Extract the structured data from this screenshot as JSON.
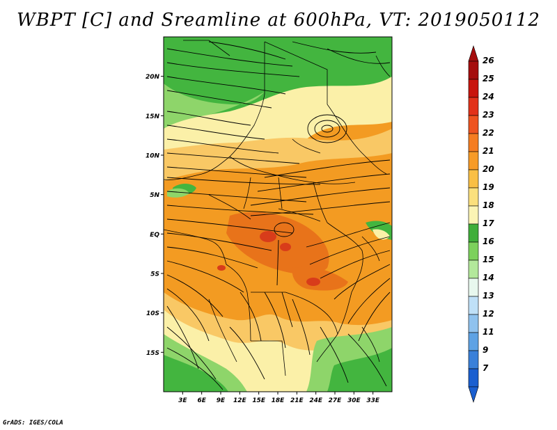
{
  "title": "WBPT [C] and Sreamline at 600hPa, VT: 2019050112",
  "credit": "GrADS: IGES/COLA",
  "map": {
    "lat_axis": {
      "range": [
        -20,
        25
      ],
      "labels": [
        "20N",
        "15N",
        "10N",
        "5N",
        "EQ",
        "5S",
        "10S",
        "15S"
      ],
      "values": [
        20,
        15,
        10,
        5,
        0,
        -5,
        -10,
        -15
      ]
    },
    "lon_axis": {
      "range": [
        0,
        36
      ],
      "labels": [
        "3E",
        "6E",
        "9E",
        "12E",
        "15E",
        "18E",
        "21E",
        "24E",
        "27E",
        "30E",
        "33E"
      ],
      "values": [
        3,
        6,
        9,
        12,
        15,
        18,
        21,
        24,
        27,
        30,
        33
      ]
    },
    "colors": {
      "green": "#43b53f",
      "light_green": "#8ed56a",
      "pale": "#fbf0a8",
      "light_orange": "#f9c865",
      "orange": "#f39b22",
      "dark_orange": "#e8731a",
      "red": "#d83c1a"
    }
  },
  "colorbar": {
    "labels": [
      "26",
      "25",
      "24",
      "23",
      "22",
      "21",
      "20",
      "19",
      "18",
      "17",
      "16",
      "15",
      "14",
      "13",
      "12",
      "11",
      "9",
      "7"
    ],
    "colors": [
      "#a50d0d",
      "#c8150d",
      "#e2321a",
      "#ee5420",
      "#f57d21",
      "#f79b27",
      "#f9bf45",
      "#fbe07d",
      "#fbf4b4",
      "#3fae3a",
      "#7cd15c",
      "#b3e89b",
      "#e8f8ee",
      "#bfe0f7",
      "#8fc2ee",
      "#5ea2e4",
      "#3a80d9",
      "#1a5fd0"
    ],
    "top_arrow_color": "#a50d0d",
    "bottom_arrow_color": "#1a5fd0"
  }
}
